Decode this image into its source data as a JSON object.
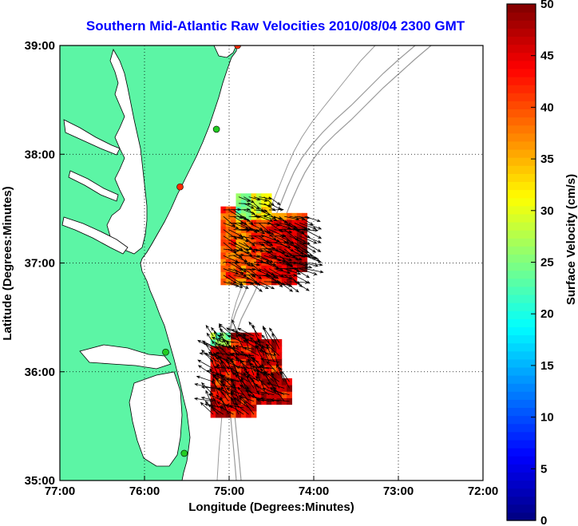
{
  "chart_data": {
    "type": "map",
    "title": "Southern Mid-Atlantic Raw Velocities 2010/08/04 2300 GMT",
    "xlabel": "Longitude (Degrees:Minutes)",
    "ylabel": "Latitude (Degrees:Minutes)",
    "xlim": [
      -77,
      -72
    ],
    "ylim": [
      35,
      39
    ],
    "x_ticks": [
      -77,
      -76,
      -75,
      -74,
      -73,
      -72
    ],
    "x_tick_labels": [
      "77:00",
      "76:00",
      "75:00",
      "74:00",
      "73:00",
      "72:00"
    ],
    "y_ticks": [
      35,
      36,
      37,
      38,
      39
    ],
    "y_tick_labels": [
      "35:00",
      "36:00",
      "37:00",
      "38:00",
      "39:00"
    ],
    "grid": "dotted",
    "colorbar": {
      "label": "Surface Velocity (cm/s)",
      "min": 0,
      "max": 50,
      "ticks": [
        0,
        5,
        10,
        15,
        20,
        25,
        30,
        35,
        40,
        45,
        50
      ],
      "colormap": "jet"
    },
    "stations": [
      {
        "lon": -74.9,
        "lat": 39.0,
        "color": "#ff2a00"
      },
      {
        "lon": -75.15,
        "lat": 38.23,
        "color": "#22cc22"
      },
      {
        "lon": -75.58,
        "lat": 37.7,
        "color": "#ff2a00"
      },
      {
        "lon": -75.75,
        "lat": 36.18,
        "color": "#22cc22"
      },
      {
        "lon": -75.53,
        "lat": 35.25,
        "color": "#22cc22"
      }
    ],
    "velocity_regions": [
      {
        "name": "north",
        "lon_range": [
          -75.1,
          -74.1
        ],
        "lat_range": [
          36.8,
          37.6
        ],
        "speed_range": [
          15,
          50
        ]
      },
      {
        "name": "south",
        "lon_range": [
          -75.22,
          -74.3
        ],
        "lat_range": [
          35.58,
          36.35
        ],
        "speed_range": [
          20,
          50
        ]
      }
    ]
  }
}
